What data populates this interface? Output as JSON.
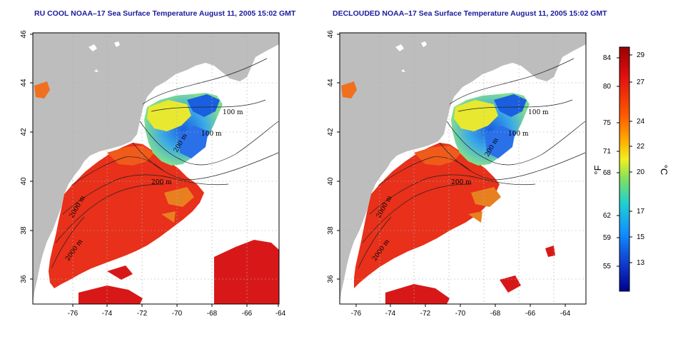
{
  "maps": [
    {
      "title": "RU COOL NOAA–17 Sea Surface Temperature August 11, 2005 15:02 GMT",
      "x_ticks": [
        "-76",
        "-74",
        "-72",
        "-70",
        "-68",
        "-66",
        "-64"
      ],
      "y_ticks": [
        "36",
        "38",
        "40",
        "42",
        "44",
        "46"
      ],
      "contour_labels": [
        "100 m",
        "100 m",
        "200 m",
        "200 m",
        "2000 m",
        "2000 m",
        "100 m"
      ]
    },
    {
      "title": "DECLOUDED NOAA–17 Sea Surface Temperature August 11, 2005 15:02 GMT",
      "x_ticks": [
        "-76",
        "-74",
        "-72",
        "-70",
        "-68",
        "-66",
        "-64"
      ],
      "y_ticks": [
        "36",
        "38",
        "40",
        "42",
        "44",
        "46"
      ],
      "contour_labels": [
        "100 m",
        "100 m",
        "200 m",
        "200 m",
        "2000 m",
        "2000 m",
        "100 m"
      ]
    }
  ],
  "colorbar": {
    "fahrenheit_label": "°F",
    "celsius_label": "°C",
    "fahrenheit_ticks": [
      "84",
      "80",
      "75",
      "71",
      "68",
      "62",
      "59",
      "55"
    ],
    "celsius_ticks": [
      "29",
      "27",
      "24",
      "22",
      "20",
      "17",
      "15",
      "13"
    ],
    "gradient_colors": [
      "#9a0000",
      "#e01010",
      "#ff5a00",
      "#ffaa00",
      "#f0f020",
      "#80e060",
      "#20d0d0",
      "#1090ff",
      "#1040d0",
      "#000090"
    ]
  },
  "colors": {
    "land": "#bdbdbd",
    "title": "#1a1a9c",
    "warm_water": "#e8301a",
    "cool_water": "#3aa8e8"
  }
}
